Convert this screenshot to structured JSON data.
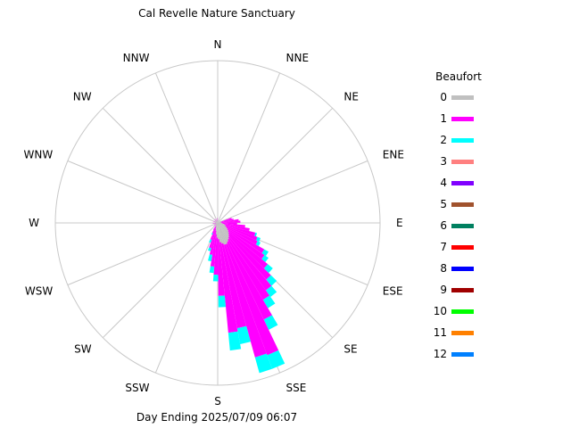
{
  "chart_data": {
    "type": "wind_rose",
    "title": "Cal Revelle Nature Sanctuary",
    "footer": "Day Ending 2025/07/09 06:07",
    "directions": [
      "N",
      "NNE",
      "NE",
      "ENE",
      "E",
      "ESE",
      "SE",
      "SSE",
      "S",
      "SSW",
      "SW",
      "WSW",
      "W",
      "WNW",
      "NW",
      "NNW"
    ],
    "legend_title": "Beaufort",
    "legend": [
      {
        "label": "0",
        "color": "#c0c0c0"
      },
      {
        "label": "1",
        "color": "#ff00ff"
      },
      {
        "label": "2",
        "color": "#00ffff"
      },
      {
        "label": "3",
        "color": "#ff8080"
      },
      {
        "label": "4",
        "color": "#8000ff"
      },
      {
        "label": "5",
        "color": "#a0522d"
      },
      {
        "label": "6",
        "color": "#008060"
      },
      {
        "label": "7",
        "color": "#ff0000"
      },
      {
        "label": "8",
        "color": "#0000ff"
      },
      {
        "label": "9",
        "color": "#a00000"
      },
      {
        "label": "10",
        "color": "#00ff00"
      },
      {
        "label": "11",
        "color": "#ff8000"
      },
      {
        "label": "12",
        "color": "#0080ff"
      }
    ],
    "bins_deg": 5,
    "series": [
      {
        "dir": 72,
        "levels": [
          0.02,
          0.07,
          0.0
        ]
      },
      {
        "dir": 77,
        "levels": [
          0.02,
          0.08,
          0.0
        ]
      },
      {
        "dir": 82,
        "levels": [
          0.02,
          0.11,
          0.0
        ]
      },
      {
        "dir": 87,
        "levels": [
          0.02,
          0.12,
          0.0
        ]
      },
      {
        "dir": 92,
        "levels": [
          0.02,
          0.1,
          0.0
        ]
      },
      {
        "dir": 97,
        "levels": [
          0.03,
          0.14,
          0.0
        ]
      },
      {
        "dir": 102,
        "levels": [
          0.04,
          0.16,
          0.0
        ]
      },
      {
        "dir": 107,
        "levels": [
          0.05,
          0.19,
          0.01
        ]
      },
      {
        "dir": 112,
        "levels": [
          0.05,
          0.21,
          0.02
        ]
      },
      {
        "dir": 117,
        "levels": [
          0.06,
          0.21,
          0.02
        ]
      },
      {
        "dir": 122,
        "levels": [
          0.07,
          0.26,
          0.03
        ]
      },
      {
        "dir": 127,
        "levels": [
          0.08,
          0.27,
          0.03
        ]
      },
      {
        "dir": 132,
        "levels": [
          0.09,
          0.31,
          0.04
        ]
      },
      {
        "dir": 137,
        "levels": [
          0.1,
          0.36,
          0.05
        ]
      },
      {
        "dir": 142,
        "levels": [
          0.11,
          0.4,
          0.05
        ]
      },
      {
        "dir": 147,
        "levels": [
          0.12,
          0.43,
          0.06
        ]
      },
      {
        "dir": 152,
        "levels": [
          0.13,
          0.53,
          0.07
        ]
      },
      {
        "dir": 157,
        "levels": [
          0.14,
          0.73,
          0.09
        ]
      },
      {
        "dir": 162,
        "levels": [
          0.14,
          0.72,
          0.1
        ]
      },
      {
        "dir": 167,
        "levels": [
          0.13,
          0.53,
          0.1
        ]
      },
      {
        "dir": 172,
        "levels": [
          0.12,
          0.56,
          0.11
        ]
      },
      {
        "dir": 177,
        "levels": [
          0.1,
          0.35,
          0.07
        ]
      },
      {
        "dir": 182,
        "levels": [
          0.09,
          0.23,
          0.04
        ]
      },
      {
        "dir": 187,
        "levels": [
          0.07,
          0.2,
          0.04
        ]
      },
      {
        "dir": 192,
        "levels": [
          0.05,
          0.15,
          0.04
        ]
      },
      {
        "dir": 197,
        "levels": [
          0.04,
          0.12,
          0.02
        ]
      },
      {
        "dir": 202,
        "levels": [
          0.03,
          0.08,
          0.02
        ]
      },
      {
        "dir": 207,
        "levels": [
          0.02,
          0.05,
          0.01
        ]
      },
      {
        "dir": 212,
        "levels": [
          0.02,
          0.03,
          0.0
        ]
      },
      {
        "dir": 232,
        "levels": [
          0.01,
          0.02,
          0.0
        ]
      },
      {
        "dir": 262,
        "levels": [
          0.01,
          0.02,
          0.0
        ]
      },
      {
        "dir": 292,
        "levels": [
          0.01,
          0.02,
          0.0
        ]
      },
      {
        "dir": 322,
        "levels": [
          0.01,
          0.02,
          0.0
        ]
      },
      {
        "dir": 352,
        "levels": [
          0.01,
          0.02,
          0.0
        ]
      }
    ]
  }
}
